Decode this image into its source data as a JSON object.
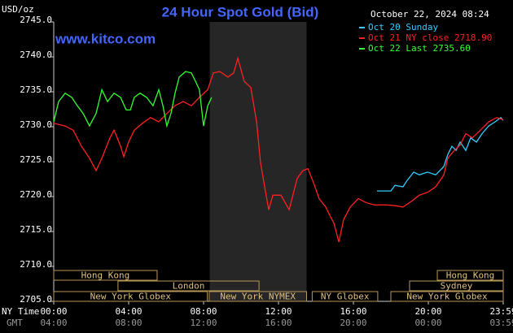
{
  "chart_data": {
    "type": "line",
    "title": "24 Hour Spot Gold (Bid)",
    "timestamp": "October 22, 2024 08:24",
    "site": "www.kitco.com",
    "y_unit": "USD/oz",
    "x_label": "NY Time",
    "x2_label": "GMT",
    "ylim": [
      2705,
      2745
    ],
    "yticks": [
      {
        "value": 2705,
        "label": "2705.0"
      },
      {
        "value": 2710,
        "label": "2710.0"
      },
      {
        "value": 2715,
        "label": "2715.0"
      },
      {
        "value": 2720,
        "label": "2720.0"
      },
      {
        "value": 2725,
        "label": "2725.0"
      },
      {
        "value": 2730,
        "label": "2730.0"
      },
      {
        "value": 2735,
        "label": "2735.0"
      },
      {
        "value": 2740,
        "label": "2740.0"
      },
      {
        "value": 2745,
        "label": "2745.0"
      }
    ],
    "xlim": [
      0,
      24
    ],
    "xticks": [
      {
        "value": 0,
        "label": "00:00"
      },
      {
        "value": 4,
        "label": "04:00"
      },
      {
        "value": 8,
        "label": "08:00"
      },
      {
        "value": 12,
        "label": "12:00"
      },
      {
        "value": 16,
        "label": "16:00"
      },
      {
        "value": 20,
        "label": "20:00"
      },
      {
        "value": 24,
        "label": "23:59"
      }
    ],
    "x2ticks": [
      "04:00",
      "08:00",
      "12:00",
      "16:00",
      "20:00",
      "00:00",
      "03:59"
    ],
    "grid": false,
    "shaded_hours": [
      8.33,
      13.5
    ],
    "sessions": [
      [
        {
          "label": "Hong Kong",
          "start": 0,
          "end": 5.52
        },
        {
          "label": "Hong Kong",
          "start": 20.48,
          "end": 24
        }
      ],
      [
        {
          "label": "London",
          "start": 3.43,
          "end": 10.96
        },
        {
          "label": "Sydney",
          "start": 19.0,
          "end": 24
        }
      ],
      [
        {
          "label": "New York Globex",
          "start": 0,
          "end": 8.2
        },
        {
          "label": "New York NYMEX",
          "start": 8.3,
          "end": 13.5
        },
        {
          "label": "NY Globex",
          "start": 13.8,
          "end": 17.3
        },
        {
          "label": "New York Globex",
          "start": 18.0,
          "end": 24
        }
      ]
    ],
    "series": [
      {
        "name": "Oct 20 Sunday",
        "color": "#33ccff",
        "x": [
          17.26,
          18.0,
          18.22,
          18.65,
          18.87,
          19.22,
          19.52,
          19.96,
          20.39,
          20.83,
          21.04,
          21.26,
          21.48,
          21.7,
          22.0,
          22.26,
          22.57,
          22.87,
          23.22,
          23.57,
          23.87,
          24.0
        ],
        "values": [
          2720.8,
          2720.8,
          2721.6,
          2721.4,
          2722.3,
          2723.5,
          2723.1,
          2723.5,
          2723.1,
          2724.3,
          2726.0,
          2727.2,
          2726.6,
          2727.8,
          2726.6,
          2728.4,
          2727.8,
          2729.0,
          2730.1,
          2730.7,
          2731.3,
          2730.9
        ]
      },
      {
        "name": "Oct 21 NY close 2718.90",
        "color": "#ff2020",
        "x": [
          0,
          0.61,
          1.04,
          1.48,
          1.91,
          2.26,
          2.57,
          3.0,
          3.22,
          3.57,
          3.74,
          4.0,
          4.3,
          4.74,
          5.17,
          5.61,
          6.04,
          6.48,
          6.91,
          7.35,
          7.78,
          8.22,
          8.52,
          8.87,
          9.3,
          9.61,
          9.83,
          10.17,
          10.52,
          10.83,
          11.04,
          11.26,
          11.48,
          11.7,
          12.13,
          12.57,
          13.0,
          13.3,
          13.57,
          13.87,
          14.17,
          14.52,
          14.74,
          14.96,
          15.22,
          15.48,
          15.83,
          16.26,
          16.7,
          17.13,
          17.78,
          18.22,
          18.65,
          19.09,
          19.52,
          19.96,
          20.39,
          20.83,
          21.04,
          21.39,
          21.7,
          22.0,
          22.35,
          22.78,
          23.22,
          23.65,
          24.0
        ],
        "values": [
          2730.5,
          2730.1,
          2729.5,
          2727.2,
          2725.5,
          2723.7,
          2725.5,
          2728.4,
          2729.5,
          2727.2,
          2725.7,
          2727.8,
          2729.5,
          2730.5,
          2731.3,
          2730.7,
          2731.9,
          2733.0,
          2733.6,
          2733.0,
          2734.2,
          2735.3,
          2737.7,
          2737.9,
          2737.1,
          2737.7,
          2739.8,
          2736.5,
          2735.6,
          2730.7,
          2724.9,
          2721.4,
          2718.1,
          2720.2,
          2720.2,
          2718.1,
          2722.6,
          2723.7,
          2724.0,
          2722.0,
          2719.7,
          2718.5,
          2717.3,
          2716.2,
          2713.5,
          2716.7,
          2718.5,
          2719.7,
          2719.1,
          2718.8,
          2718.8,
          2718.7,
          2718.5,
          2719.3,
          2720.2,
          2720.6,
          2721.4,
          2723.1,
          2725.5,
          2726.6,
          2727.4,
          2729.0,
          2728.4,
          2729.5,
          2730.7,
          2731.3,
          2731.0
        ]
      },
      {
        "name": "Oct 22 Last 2735.60",
        "color": "#33ff33",
        "x": [
          0,
          0.26,
          0.61,
          0.96,
          1.26,
          1.57,
          1.91,
          2.26,
          2.57,
          2.87,
          3.22,
          3.57,
          3.87,
          4.09,
          4.3,
          4.61,
          4.96,
          5.3,
          5.61,
          5.83,
          6.04,
          6.26,
          6.48,
          6.7,
          7.04,
          7.35,
          7.57,
          7.78,
          8.0,
          8.22,
          8.43
        ],
        "values": [
          2730.7,
          2733.6,
          2734.8,
          2734.2,
          2733.0,
          2731.9,
          2730.1,
          2731.9,
          2735.3,
          2733.6,
          2734.8,
          2734.2,
          2732.4,
          2732.4,
          2734.2,
          2734.8,
          2734.2,
          2733.0,
          2735.3,
          2733.0,
          2730.1,
          2731.9,
          2734.8,
          2737.1,
          2737.9,
          2737.7,
          2736.5,
          2735.3,
          2730.1,
          2733.0,
          2734.2
        ]
      }
    ]
  }
}
